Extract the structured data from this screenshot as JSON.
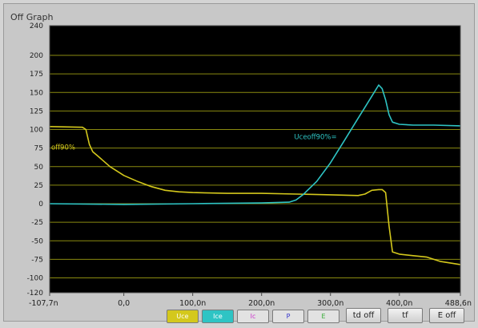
{
  "window": {
    "title": "Off Graph"
  },
  "chart_data": {
    "type": "line",
    "xlim": [
      -107.7,
      488.6
    ],
    "ylim": [
      -120,
      240
    ],
    "x_ticks": [
      "-107,7n",
      "0,0",
      "100,0n",
      "200,0n",
      "300,0n",
      "400,0n",
      "488,6n"
    ],
    "x_tick_values": [
      -107.7,
      0,
      100,
      200,
      300,
      400,
      488.6
    ],
    "y_ticks": [
      "240",
      "200",
      "175",
      "150",
      "125",
      "100",
      "75",
      "50",
      "25",
      "0",
      "-25",
      "-50",
      "-75",
      "-100",
      "-120"
    ],
    "y_tick_values": [
      240,
      200,
      175,
      150,
      125,
      100,
      75,
      50,
      25,
      0,
      -25,
      -50,
      -75,
      -100,
      -120
    ],
    "grid": true,
    "background": "#000000",
    "grid_color": "#8a8a10",
    "series": [
      {
        "name": "Uce",
        "color": "#d4c81c",
        "x": [
          -107.7,
          -60,
          -55,
          -50,
          -45,
          -40,
          -30,
          -20,
          -10,
          0,
          20,
          40,
          60,
          80,
          100,
          150,
          200,
          250,
          300,
          340,
          350,
          360,
          370,
          375,
          380,
          385,
          390,
          400,
          420,
          440,
          460,
          488.6
        ],
        "y": [
          104,
          103,
          100,
          80,
          70,
          66,
          58,
          50,
          44,
          38,
          30,
          23,
          18,
          16,
          15,
          14,
          14,
          13,
          12,
          11,
          13,
          18,
          19,
          19,
          15,
          -30,
          -65,
          -68,
          -70,
          -72,
          -78,
          -82
        ]
      },
      {
        "name": "Ice",
        "color": "#2ec4c4",
        "x": [
          -107.7,
          0,
          100,
          200,
          240,
          250,
          260,
          280,
          300,
          320,
          340,
          350,
          360,
          370,
          375,
          380,
          385,
          390,
          400,
          420,
          450,
          488.6
        ],
        "y": [
          0,
          -1,
          0,
          1,
          2,
          5,
          12,
          30,
          55,
          85,
          115,
          130,
          145,
          160,
          155,
          140,
          120,
          110,
          107,
          106,
          106,
          105
        ]
      }
    ],
    "annotations": [
      {
        "text": "off90%",
        "color": "#d4c81c",
        "x": -107.7,
        "y": 73
      },
      {
        "text": "Uceoff90%=",
        "color": "#2ec4c4",
        "x": 245,
        "y": 87
      }
    ]
  },
  "legend_buttons": [
    {
      "label": "Uce",
      "bg": "#d4c81c",
      "fg": "#ffffff"
    },
    {
      "label": "Ice",
      "bg": "#2ec4c4",
      "fg": "#ffffff"
    },
    {
      "label": "Ic",
      "bg": "#e2e2e2",
      "fg": "#cc33cc"
    },
    {
      "label": "P",
      "bg": "#e2e2e2",
      "fg": "#3333cc"
    },
    {
      "label": "E",
      "bg": "#e2e2e2",
      "fg": "#33aa33"
    }
  ],
  "buttons": {
    "td_off": "td off",
    "tf": "tf",
    "e_off": "E off"
  }
}
